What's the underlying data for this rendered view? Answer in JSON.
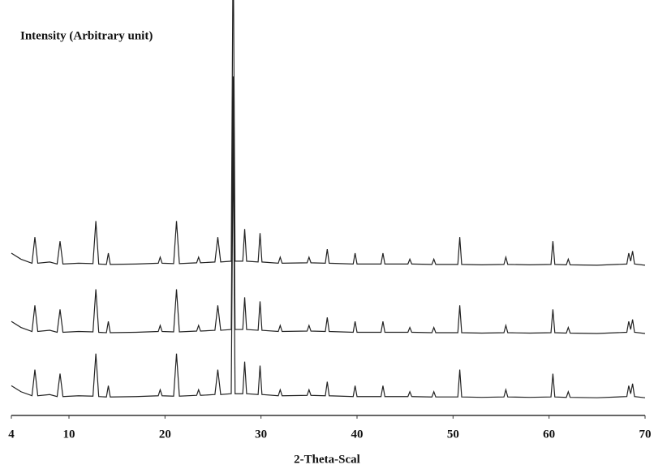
{
  "chart_data": {
    "type": "line",
    "ylabel": "Intensity (Arbitrary unit)",
    "xlabel": "2-Theta-Scal",
    "x": [
      4,
      5,
      6.15,
      6.45,
      6.75,
      8,
      8.77,
      9.07,
      9.37,
      11,
      12.5,
      12.8,
      13.1,
      13.9,
      14.1,
      14.3,
      17,
      19.3,
      19.5,
      19.7,
      20.9,
      21.2,
      21.5,
      23.3,
      23.5,
      23.7,
      25.2,
      25.5,
      25.8,
      26.9,
      27.1,
      27.3,
      28.1,
      28.3,
      28.5,
      29.7,
      29.9,
      30.1,
      31.8,
      32,
      32.2,
      34.8,
      35,
      35.2,
      36.7,
      36.9,
      37.1,
      39.6,
      39.8,
      40,
      42.5,
      42.7,
      42.9,
      45.3,
      45.5,
      45.7,
      47.8,
      48,
      48.2,
      50.5,
      50.7,
      50.9,
      53,
      55.3,
      55.5,
      55.7,
      58,
      60.2,
      60.4,
      60.6,
      61.8,
      62,
      62.2,
      65,
      68.1,
      68.3,
      68.5,
      68.7,
      68.9,
      70
    ],
    "series": [
      {
        "color": "#222222",
        "values": [
          40,
          38.5,
          37.5,
          44,
          37.5,
          37.8,
          37.3,
          43,
          37.3,
          37.5,
          37.4,
          48,
          37.3,
          37.2,
          40,
          37.2,
          37.3,
          37.5,
          39,
          37.5,
          37.4,
          48,
          37.4,
          37.6,
          39,
          37.6,
          37.8,
          44,
          37.8,
          38,
          120,
          38,
          38,
          46,
          38,
          37.8,
          45,
          37.8,
          37.5,
          39,
          37.5,
          37.6,
          39,
          37.6,
          37.5,
          41,
          37.5,
          37.3,
          40,
          37.3,
          37.3,
          40,
          37.3,
          37.3,
          38.5,
          37.3,
          37.2,
          38.5,
          37.2,
          37.2,
          44,
          37.2,
          37.1,
          37.2,
          39,
          37.2,
          37.1,
          37.2,
          43,
          37.2,
          37.1,
          38.5,
          37.1,
          37,
          37.3,
          40,
          38,
          40.5,
          37.3,
          37
        ]
      },
      {
        "color": "#222222",
        "values": [
          23,
          21.5,
          20.5,
          27,
          20.5,
          20.8,
          20.3,
          26,
          20.3,
          20.5,
          20.4,
          31,
          20.3,
          20.2,
          23,
          20.2,
          20.3,
          20.5,
          22,
          20.5,
          20.4,
          31,
          20.4,
          20.6,
          22,
          20.6,
          20.8,
          27,
          20.8,
          21,
          84,
          21,
          21,
          29,
          21,
          20.8,
          28,
          20.8,
          20.5,
          22,
          20.5,
          20.6,
          22,
          20.6,
          20.5,
          24,
          20.5,
          20.3,
          23,
          20.3,
          20.3,
          23,
          20.3,
          20.3,
          21.5,
          20.3,
          20.2,
          21.5,
          20.2,
          20.2,
          27,
          20.2,
          20.1,
          20.2,
          22,
          20.2,
          20.1,
          20.2,
          26,
          20.2,
          20.1,
          21.5,
          20.1,
          20,
          20.3,
          23,
          21,
          23.5,
          20.3,
          20
        ]
      },
      {
        "color": "#222222",
        "values": [
          7,
          5.5,
          4.5,
          11,
          4.5,
          4.8,
          4.3,
          10,
          4.3,
          4.5,
          4.4,
          15,
          4.3,
          4.2,
          7,
          4.2,
          4.3,
          4.5,
          6,
          4.5,
          4.4,
          15,
          4.4,
          4.6,
          6,
          4.6,
          4.8,
          11,
          4.8,
          5,
          70,
          5,
          5,
          13,
          5,
          4.8,
          12,
          4.8,
          4.5,
          6,
          4.5,
          4.6,
          6,
          4.6,
          4.5,
          8,
          4.5,
          4.3,
          7,
          4.3,
          4.3,
          7,
          4.3,
          4.3,
          5.5,
          4.3,
          4.2,
          5.5,
          4.2,
          4.2,
          11,
          4.2,
          4.1,
          4.2,
          6,
          4.2,
          4.1,
          4.2,
          10,
          4.2,
          4.1,
          5.5,
          4.1,
          4,
          4.3,
          7,
          5,
          7.5,
          4.3,
          4
        ]
      }
    ],
    "xlim": [
      4,
      70
    ],
    "xticks": [
      4,
      10,
      20,
      30,
      40,
      50,
      60,
      70
    ],
    "ylim": [
      0,
      100
    ]
  }
}
